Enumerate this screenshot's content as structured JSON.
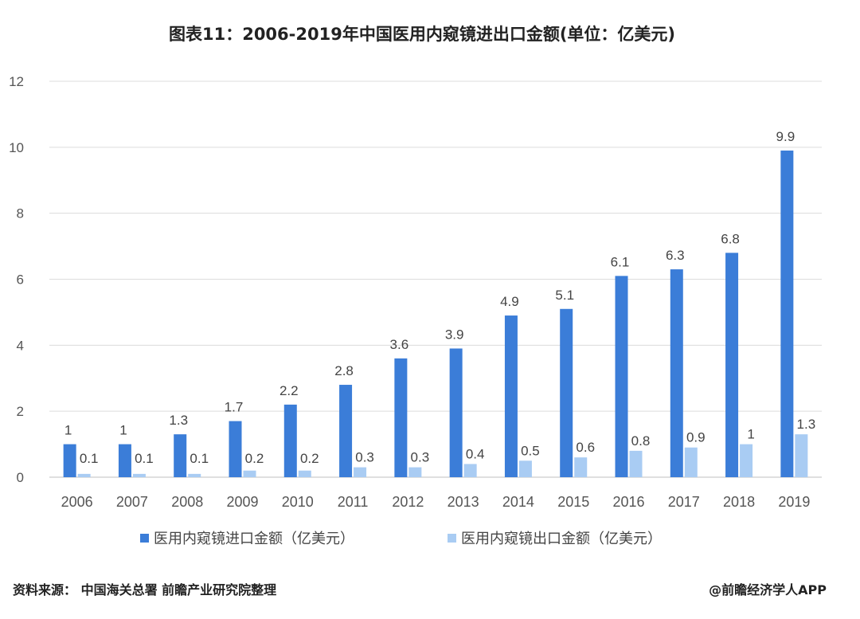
{
  "chart_data": {
    "type": "bar",
    "title": "图表11：2006-2019年中国医用内窥镜进出口金额(单位：亿美元)",
    "categories": [
      "2006",
      "2007",
      "2008",
      "2009",
      "2010",
      "2011",
      "2012",
      "2013",
      "2014",
      "2015",
      "2016",
      "2017",
      "2018",
      "2019"
    ],
    "series": [
      {
        "name": "医用内窥镜进口金额（亿美元）",
        "color": "#3b7dd8",
        "values": [
          1,
          1,
          1.3,
          1.7,
          2.2,
          2.8,
          3.6,
          3.9,
          4.9,
          5.1,
          6.1,
          6.3,
          6.8,
          9.9
        ],
        "labels": [
          "1",
          "1",
          "1.3",
          "1.7",
          "2.2",
          "2.8",
          "3.6",
          "3.9",
          "4.9",
          "5.1",
          "6.1",
          "6.3",
          "6.8",
          "9.9"
        ]
      },
      {
        "name": "医用内窥镜出口金额（亿美元）",
        "color": "#a9ccf3",
        "values": [
          0.1,
          0.1,
          0.1,
          0.2,
          0.2,
          0.3,
          0.3,
          0.4,
          0.5,
          0.6,
          0.8,
          0.9,
          1,
          1.3
        ],
        "labels": [
          "0.1",
          "0.1",
          "0.1",
          "0.2",
          "0.2",
          "0.3",
          "0.3",
          "0.4",
          "0.5",
          "0.6",
          "0.8",
          "0.9",
          "1",
          "1.3"
        ]
      }
    ],
    "ylim": [
      0,
      12
    ],
    "yticks": [
      "0",
      "2",
      "4",
      "6",
      "8",
      "10",
      "12"
    ],
    "grid": true,
    "legend_position": "bottom"
  },
  "footer": {
    "source": "资料来源：  中国海关总署 前瞻产业研究院整理",
    "brand": "@前瞻经济学人APP"
  }
}
